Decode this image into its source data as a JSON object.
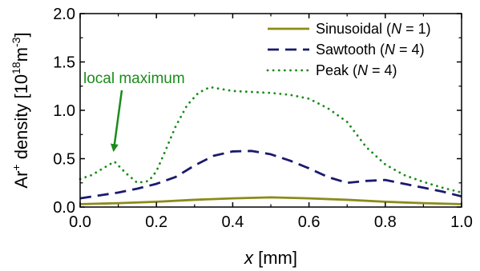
{
  "chart_data": {
    "type": "line",
    "xlabel": {
      "var": "x",
      "unit": " [mm]"
    },
    "ylabel": {
      "species": "Ar",
      "charge": "+",
      "text": " density [10",
      "exp": "18",
      "unit": "m",
      "unit_exp": "-3",
      "close": "]"
    },
    "xlim": [
      0.0,
      1.0
    ],
    "ylim": [
      0.0,
      2.0
    ],
    "xticks": [
      0.0,
      0.2,
      0.4,
      0.6,
      0.8,
      1.0
    ],
    "xtick_labels": [
      "0.0",
      "0.2",
      "0.4",
      "0.6",
      "0.8",
      "1.0"
    ],
    "yticks": [
      0.0,
      0.5,
      1.0,
      1.5,
      2.0
    ],
    "ytick_labels": [
      "0.0",
      "0.5",
      "1.0",
      "1.5",
      "2.0"
    ],
    "grid": false,
    "legend_position": "top-right",
    "series": [
      {
        "name": "Sinusoidal",
        "legend": {
          "pre": "Sinusoidal (",
          "var": "N",
          "post": " = 1)"
        },
        "color": "#8b8b1a",
        "style": "solid",
        "x": [
          0.0,
          0.1,
          0.2,
          0.3,
          0.4,
          0.5,
          0.6,
          0.7,
          0.8,
          0.9,
          1.0
        ],
        "y": [
          0.03,
          0.04,
          0.055,
          0.075,
          0.09,
          0.1,
          0.09,
          0.075,
          0.055,
          0.04,
          0.03
        ]
      },
      {
        "name": "Sawtooth",
        "legend": {
          "pre": "Sawtooth (",
          "var": "N",
          "post": " = 4)"
        },
        "color": "#1a1a6e",
        "style": "dashed",
        "x": [
          0.0,
          0.05,
          0.1,
          0.15,
          0.2,
          0.25,
          0.3,
          0.35,
          0.4,
          0.45,
          0.5,
          0.55,
          0.6,
          0.65,
          0.7,
          0.75,
          0.8,
          0.85,
          0.9,
          0.95,
          1.0
        ],
        "y": [
          0.09,
          0.12,
          0.15,
          0.19,
          0.24,
          0.31,
          0.43,
          0.53,
          0.575,
          0.58,
          0.545,
          0.48,
          0.4,
          0.31,
          0.25,
          0.27,
          0.28,
          0.24,
          0.2,
          0.16,
          0.11
        ]
      },
      {
        "name": "Peak",
        "legend": {
          "pre": "Peak (",
          "var": "N",
          "post": " = 4)"
        },
        "color": "#1a8c1a",
        "style": "dotted",
        "x": [
          0.0,
          0.03,
          0.06,
          0.09,
          0.12,
          0.15,
          0.18,
          0.2,
          0.22,
          0.25,
          0.28,
          0.31,
          0.34,
          0.37,
          0.4,
          0.45,
          0.5,
          0.55,
          0.6,
          0.65,
          0.7,
          0.75,
          0.8,
          0.85,
          0.9,
          0.95,
          1.0
        ],
        "y": [
          0.29,
          0.33,
          0.4,
          0.47,
          0.35,
          0.25,
          0.27,
          0.37,
          0.55,
          0.83,
          1.05,
          1.18,
          1.24,
          1.22,
          1.2,
          1.19,
          1.18,
          1.16,
          1.12,
          1.02,
          0.88,
          0.62,
          0.44,
          0.33,
          0.26,
          0.2,
          0.15
        ]
      }
    ],
    "annotations": [
      {
        "text": "local maximum",
        "color": "#1a8c1a",
        "target": {
          "x": 0.09,
          "y": 0.47
        }
      }
    ]
  }
}
